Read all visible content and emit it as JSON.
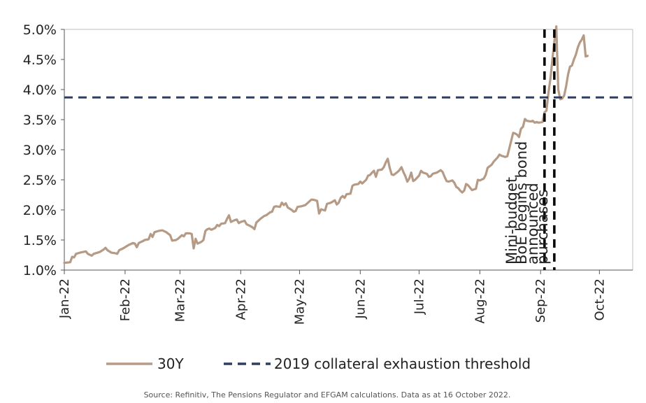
{
  "chart_data": {
    "type": "line",
    "title": "",
    "xlabel": "",
    "ylabel": "",
    "ylim": [
      1.0,
      5.0
    ],
    "y_ticks": [
      "5.0%",
      "4.5%",
      "4.0%",
      "3.5%",
      "3.0%",
      "2.5%",
      "2.0%",
      "1.5%",
      "1.0%"
    ],
    "y_tick_values": [
      5.0,
      4.5,
      4.0,
      3.5,
      3.0,
      2.5,
      2.0,
      1.5,
      1.0
    ],
    "x_ticks": [
      "Jan-22",
      "Feb-22",
      "Mar-22",
      "Apr-22",
      "May-22",
      "Jun-22",
      "Jul-22",
      "Aug-22",
      "Sep-22",
      "Oct-22"
    ],
    "x_tick_days": [
      0,
      31,
      59,
      90,
      120,
      151,
      181,
      212,
      243,
      273
    ],
    "xlim_days": [
      0,
      290
    ],
    "grid": false,
    "legend_position": "bottom-center",
    "series": [
      {
        "name": "30Y",
        "color": "#b59a86",
        "style": "solid",
        "points": [
          [
            0,
            1.12
          ],
          [
            3,
            1.13
          ],
          [
            4,
            1.22
          ],
          [
            5,
            1.21
          ],
          [
            6,
            1.27
          ],
          [
            8,
            1.29
          ],
          [
            11,
            1.31
          ],
          [
            12,
            1.27
          ],
          [
            14,
            1.24
          ],
          [
            15,
            1.27
          ],
          [
            18,
            1.3
          ],
          [
            20,
            1.34
          ],
          [
            21,
            1.37
          ],
          [
            22,
            1.33
          ],
          [
            24,
            1.29
          ],
          [
            26,
            1.28
          ],
          [
            27,
            1.27
          ],
          [
            28,
            1.33
          ],
          [
            30,
            1.36
          ],
          [
            31,
            1.38
          ],
          [
            33,
            1.42
          ],
          [
            35,
            1.45
          ],
          [
            36,
            1.44
          ],
          [
            37,
            1.38
          ],
          [
            38,
            1.45
          ],
          [
            40,
            1.48
          ],
          [
            41,
            1.5
          ],
          [
            43,
            1.51
          ],
          [
            44,
            1.6
          ],
          [
            45,
            1.55
          ],
          [
            46,
            1.63
          ],
          [
            48,
            1.65
          ],
          [
            50,
            1.66
          ],
          [
            52,
            1.63
          ],
          [
            54,
            1.58
          ],
          [
            55,
            1.49
          ],
          [
            57,
            1.5
          ],
          [
            58,
            1.52
          ],
          [
            60,
            1.58
          ],
          [
            61,
            1.56
          ],
          [
            62,
            1.61
          ],
          [
            64,
            1.61
          ],
          [
            65,
            1.6
          ],
          [
            66,
            1.36
          ],
          [
            67,
            1.52
          ],
          [
            68,
            1.44
          ],
          [
            70,
            1.47
          ],
          [
            71,
            1.5
          ],
          [
            72,
            1.65
          ],
          [
            73,
            1.68
          ],
          [
            74,
            1.69
          ],
          [
            75,
            1.67
          ],
          [
            77,
            1.7
          ],
          [
            78,
            1.75
          ],
          [
            79,
            1.73
          ],
          [
            80,
            1.77
          ],
          [
            82,
            1.78
          ],
          [
            83,
            1.85
          ],
          [
            84,
            1.91
          ],
          [
            85,
            1.8
          ],
          [
            87,
            1.83
          ],
          [
            88,
            1.84
          ],
          [
            89,
            1.78
          ],
          [
            90,
            1.8
          ],
          [
            92,
            1.82
          ],
          [
            93,
            1.76
          ],
          [
            95,
            1.73
          ],
          [
            96,
            1.71
          ],
          [
            97,
            1.68
          ],
          [
            98,
            1.79
          ],
          [
            100,
            1.85
          ],
          [
            102,
            1.9
          ],
          [
            103,
            1.91
          ],
          [
            105,
            1.96
          ],
          [
            106,
            1.97
          ],
          [
            107,
            2.05
          ],
          [
            108,
            2.06
          ],
          [
            110,
            2.05
          ],
          [
            111,
            2.12
          ],
          [
            112,
            2.08
          ],
          [
            113,
            2.11
          ],
          [
            114,
            2.04
          ],
          [
            116,
            2.0
          ],
          [
            117,
            1.97
          ],
          [
            118,
            1.98
          ],
          [
            119,
            2.05
          ],
          [
            121,
            2.06
          ],
          [
            123,
            2.08
          ],
          [
            124,
            2.11
          ],
          [
            126,
            2.17
          ],
          [
            127,
            2.17
          ],
          [
            128,
            2.16
          ],
          [
            129,
            2.15
          ],
          [
            130,
            1.94
          ],
          [
            131,
            2.01
          ],
          [
            132,
            2.0
          ],
          [
            133,
            1.99
          ],
          [
            134,
            2.1
          ],
          [
            136,
            2.12
          ],
          [
            137,
            2.14
          ],
          [
            138,
            2.16
          ],
          [
            139,
            2.09
          ],
          [
            140,
            2.12
          ],
          [
            141,
            2.2
          ],
          [
            142,
            2.23
          ],
          [
            143,
            2.2
          ],
          [
            144,
            2.26
          ],
          [
            146,
            2.27
          ],
          [
            147,
            2.4
          ],
          [
            148,
            2.42
          ],
          [
            150,
            2.43
          ],
          [
            151,
            2.47
          ],
          [
            152,
            2.44
          ],
          [
            154,
            2.5
          ],
          [
            155,
            2.57
          ],
          [
            156,
            2.58
          ],
          [
            157,
            2.62
          ],
          [
            158,
            2.65
          ],
          [
            159,
            2.55
          ],
          [
            160,
            2.66
          ],
          [
            162,
            2.67
          ],
          [
            163,
            2.71
          ],
          [
            164,
            2.79
          ],
          [
            165,
            2.85
          ],
          [
            166,
            2.7
          ],
          [
            167,
            2.59
          ],
          [
            168,
            2.58
          ],
          [
            170,
            2.63
          ],
          [
            171,
            2.66
          ],
          [
            172,
            2.71
          ],
          [
            173,
            2.63
          ],
          [
            174,
            2.56
          ],
          [
            175,
            2.47
          ],
          [
            176,
            2.52
          ],
          [
            177,
            2.62
          ],
          [
            178,
            2.48
          ],
          [
            179,
            2.5
          ],
          [
            181,
            2.57
          ],
          [
            182,
            2.65
          ],
          [
            183,
            2.62
          ],
          [
            185,
            2.6
          ],
          [
            186,
            2.55
          ],
          [
            187,
            2.56
          ],
          [
            188,
            2.6
          ],
          [
            190,
            2.62
          ],
          [
            191,
            2.64
          ],
          [
            192,
            2.66
          ],
          [
            193,
            2.63
          ],
          [
            194,
            2.55
          ],
          [
            195,
            2.48
          ],
          [
            196,
            2.47
          ],
          [
            198,
            2.49
          ],
          [
            199,
            2.45
          ],
          [
            200,
            2.38
          ],
          [
            201,
            2.36
          ],
          [
            202,
            2.32
          ],
          [
            203,
            2.29
          ],
          [
            204,
            2.32
          ],
          [
            205,
            2.43
          ],
          [
            206,
            2.41
          ],
          [
            207,
            2.37
          ],
          [
            208,
            2.33
          ],
          [
            210,
            2.35
          ],
          [
            211,
            2.5
          ],
          [
            212,
            2.49
          ],
          [
            214,
            2.52
          ],
          [
            215,
            2.58
          ],
          [
            216,
            2.7
          ],
          [
            218,
            2.75
          ],
          [
            219,
            2.8
          ],
          [
            221,
            2.87
          ],
          [
            222,
            2.92
          ],
          [
            223,
            2.9
          ],
          [
            225,
            2.88
          ],
          [
            226,
            2.89
          ],
          [
            227,
            3.02
          ],
          [
            228,
            3.15
          ],
          [
            229,
            3.28
          ],
          [
            230,
            3.27
          ],
          [
            231,
            3.25
          ],
          [
            232,
            3.21
          ],
          [
            233,
            3.35
          ],
          [
            234,
            3.38
          ],
          [
            235,
            3.51
          ],
          [
            236,
            3.48
          ],
          [
            238,
            3.47
          ],
          [
            239,
            3.48
          ],
          [
            240,
            3.45
          ],
          [
            241,
            3.46
          ],
          [
            242,
            3.45
          ],
          [
            244,
            3.46
          ],
          [
            245,
            3.62
          ],
          [
            246,
            3.65
          ],
          [
            247,
            3.95
          ],
          [
            248,
            4.18
          ],
          [
            249,
            4.5
          ],
          [
            250,
            4.8
          ],
          [
            251,
            5.05
          ],
          [
            252,
            4.0
          ],
          [
            253,
            3.84
          ],
          [
            254,
            3.85
          ],
          [
            255,
            3.9
          ],
          [
            256,
            4.05
          ],
          [
            257,
            4.25
          ],
          [
            258,
            4.38
          ],
          [
            259,
            4.4
          ],
          [
            260,
            4.5
          ],
          [
            261,
            4.58
          ],
          [
            262,
            4.7
          ],
          [
            263,
            4.78
          ],
          [
            264,
            4.83
          ],
          [
            265,
            4.9
          ],
          [
            266,
            4.55
          ],
          [
            267,
            4.56
          ]
        ]
      },
      {
        "name": "2019 collateral exhaustion threshold",
        "color": "#2e3e5e",
        "style": "dashed",
        "points": [
          [
            0,
            3.87
          ],
          [
            290,
            3.87
          ]
        ]
      }
    ],
    "annotations": [
      {
        "id": "mini-budget",
        "text_lines": [
          "Mini-budget",
          "announced"
        ],
        "day": 245,
        "style": "dashed-vertical"
      },
      {
        "id": "boe",
        "text_lines": [
          "BoE begins bond",
          "purchases"
        ],
        "day": 250,
        "style": "dashed-vertical"
      }
    ],
    "legend": [
      {
        "label": "30Y",
        "color": "#b59a86",
        "style": "solid"
      },
      {
        "label": "2019 collateral exhaustion threshold",
        "color": "#2e3e5e",
        "style": "dashed"
      }
    ],
    "source_note": "Source: Refinitiv, The Pensions Regulator and EFGAM calculations. Data as at 16 October 2022."
  }
}
